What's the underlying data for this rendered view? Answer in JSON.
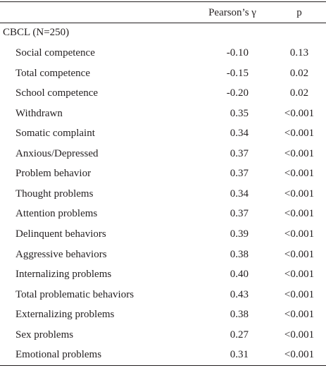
{
  "header": {
    "columns": [
      "",
      "Pearson’s γ",
      "p"
    ]
  },
  "table": {
    "group": "CBCL (N=250)",
    "rows": [
      [
        "Social competence",
        "-0.10",
        "0.13"
      ],
      [
        "Total competence",
        "-0.15",
        "0.02"
      ],
      [
        "School competence",
        "-0.20",
        "0.02"
      ],
      [
        "Withdrawn",
        "0.35",
        "<0.001"
      ],
      [
        "Somatic complaint",
        "0.34",
        "<0.001"
      ],
      [
        "Anxious/Depressed",
        "0.37",
        "<0.001"
      ],
      [
        "Problem behavior",
        "0.37",
        "<0.001"
      ],
      [
        "Thought problems",
        "0.34",
        "<0.001"
      ],
      [
        "Attention problems",
        "0.37",
        "<0.001"
      ],
      [
        "Delinquent behaviors",
        "0.39",
        "<0.001"
      ],
      [
        "Aggressive behaviors",
        "0.38",
        "<0.001"
      ],
      [
        "Internalizing problems",
        "0.40",
        "<0.001"
      ],
      [
        "Total problematic behaviors",
        "0.43",
        "<0.001"
      ],
      [
        "Externalizing problems",
        "0.38",
        "<0.001"
      ],
      [
        "Sex problems",
        "0.27",
        "<0.001"
      ],
      [
        "Emotional problems",
        "0.31",
        "<0.001"
      ]
    ]
  }
}
